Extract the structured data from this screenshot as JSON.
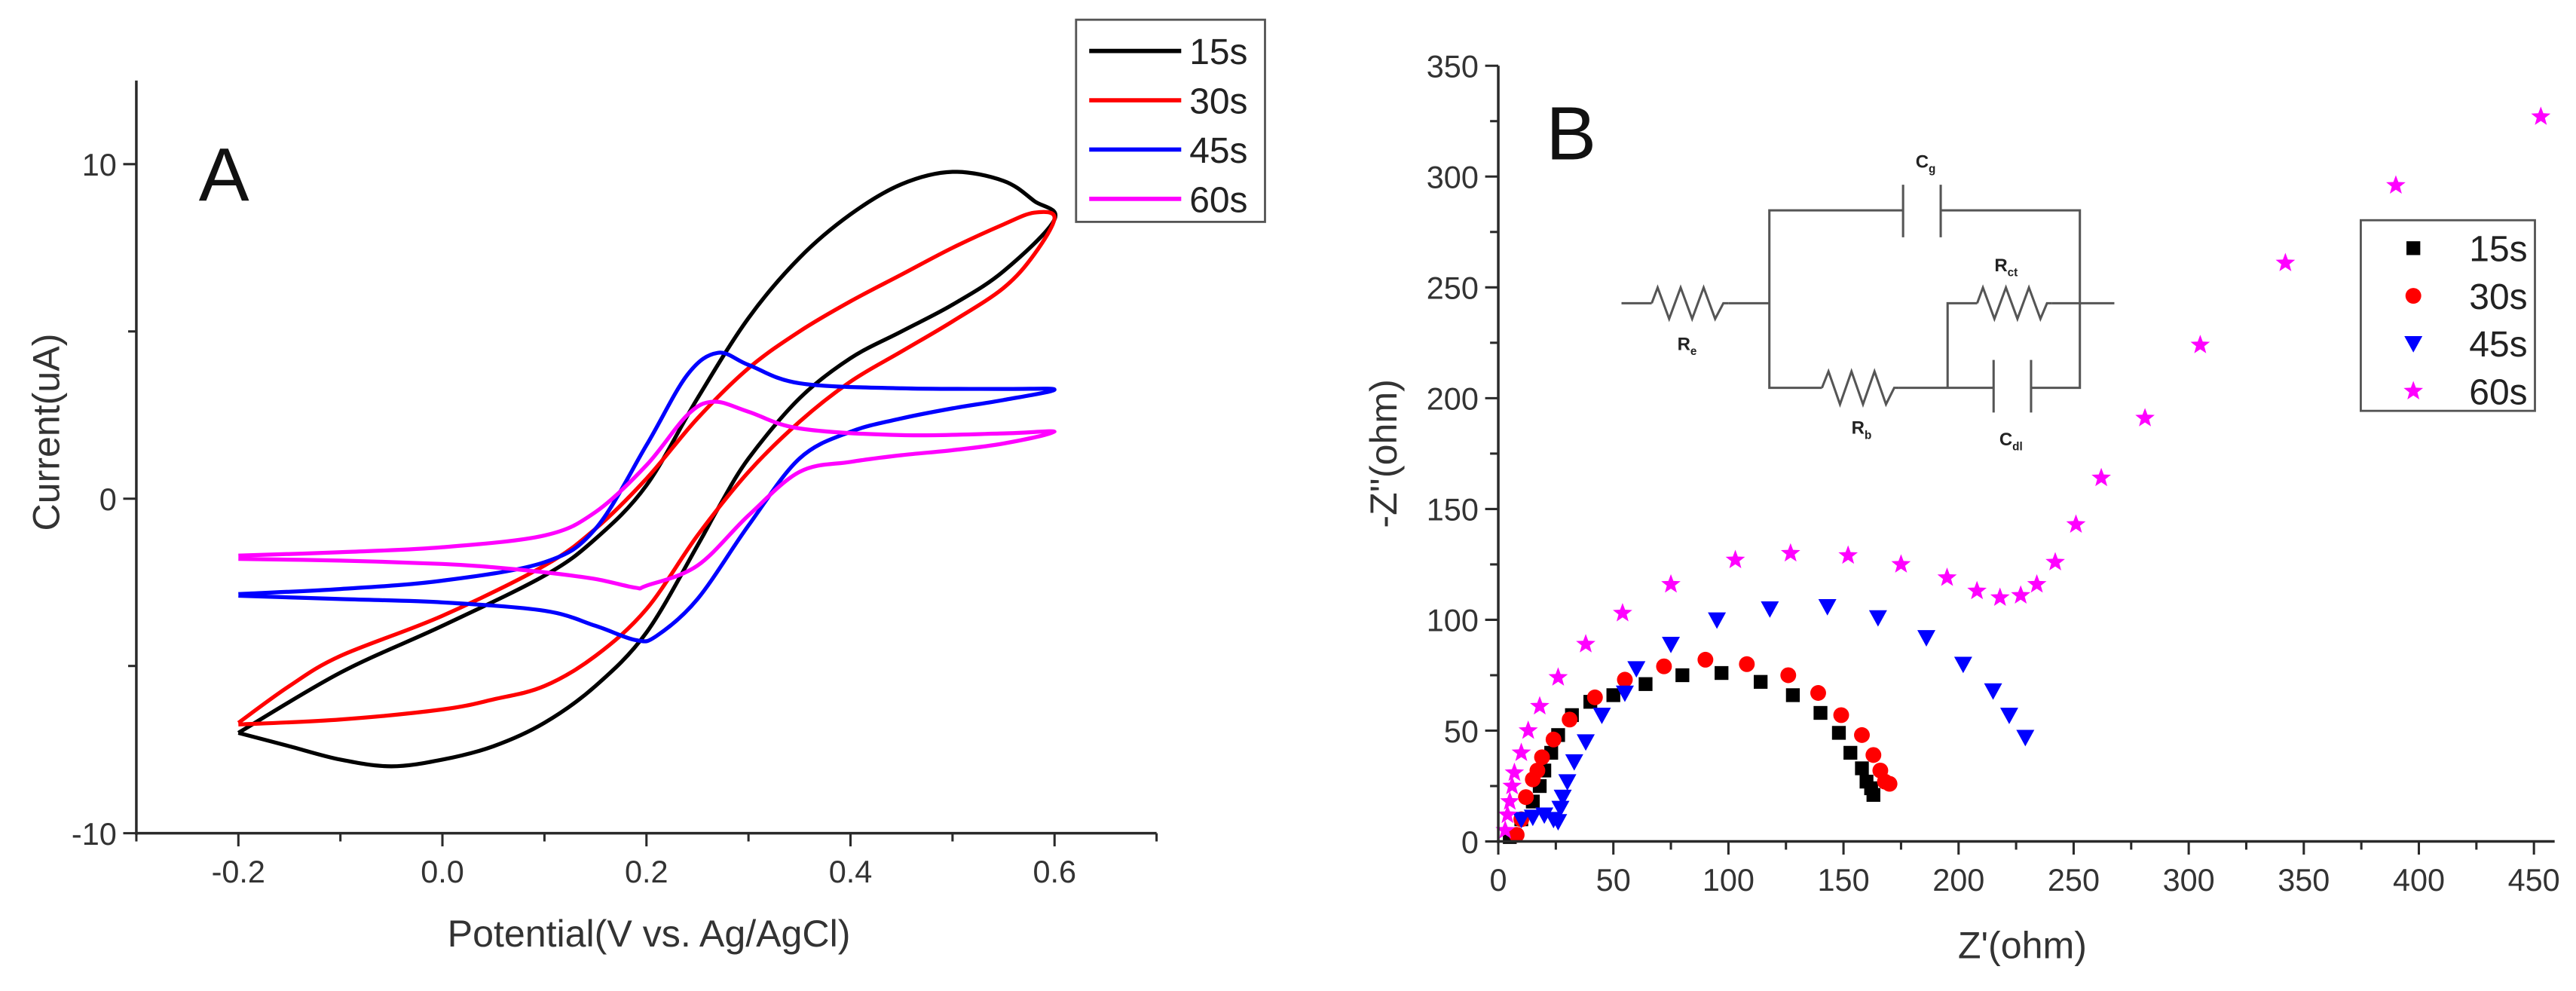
{
  "chart_data": [
    {
      "type": "line",
      "panel_label": "A",
      "title": "",
      "xlabel": "Potential(V vs. Ag/AgCl)",
      "ylabel": "Current(uA)",
      "xlim": [
        -0.3,
        0.7
      ],
      "ylim": [
        -10,
        12.5
      ],
      "xticks": [
        {
          "value": -0.2,
          "label": "-0.2"
        },
        {
          "value": 0.0,
          "label": "0.0"
        },
        {
          "value": 0.2,
          "label": "0.2"
        },
        {
          "value": 0.4,
          "label": "0.4"
        },
        {
          "value": 0.6,
          "label": "0.6"
        }
      ],
      "xminor_step": 0.1,
      "yticks": [
        {
          "value": -10,
          "label": "-10"
        },
        {
          "value": 0,
          "label": "0"
        },
        {
          "value": 10,
          "label": "10"
        }
      ],
      "yminor_step": 5,
      "grid": false,
      "legend_position": "top-right",
      "series": [
        {
          "name": "15s",
          "color": "#000000",
          "points": [
            [
              -0.2,
              -7.0
            ],
            [
              -0.1,
              -5.2
            ],
            [
              0.0,
              -3.8
            ],
            [
              0.1,
              -2.3
            ],
            [
              0.15,
              -1.2
            ],
            [
              0.2,
              0.4
            ],
            [
              0.25,
              3.0
            ],
            [
              0.3,
              5.4
            ],
            [
              0.35,
              7.2
            ],
            [
              0.4,
              8.5
            ],
            [
              0.45,
              9.4
            ],
            [
              0.5,
              9.77
            ],
            [
              0.55,
              9.5
            ],
            [
              0.58,
              8.9
            ],
            [
              0.6,
              8.35
            ],
            [
              0.55,
              6.8
            ],
            [
              0.5,
              5.8
            ],
            [
              0.45,
              5.0
            ],
            [
              0.4,
              4.2
            ],
            [
              0.35,
              3.0
            ],
            [
              0.3,
              1.2
            ],
            [
              0.27,
              -0.3
            ],
            [
              0.25,
              -1.4
            ],
            [
              0.2,
              -4.0
            ],
            [
              0.15,
              -5.6
            ],
            [
              0.1,
              -6.7
            ],
            [
              0.05,
              -7.4
            ],
            [
              0.0,
              -7.8
            ],
            [
              -0.05,
              -8.0
            ],
            [
              -0.1,
              -7.8
            ],
            [
              -0.15,
              -7.4
            ],
            [
              -0.2,
              -7.0
            ]
          ]
        },
        {
          "name": "30s",
          "color": "#ff0000",
          "points": [
            [
              -0.2,
              -6.7
            ],
            [
              -0.15,
              -5.6
            ],
            [
              -0.1,
              -4.7
            ],
            [
              0.0,
              -3.5
            ],
            [
              0.1,
              -2.0
            ],
            [
              0.15,
              -0.9
            ],
            [
              0.2,
              0.6
            ],
            [
              0.25,
              2.4
            ],
            [
              0.3,
              3.9
            ],
            [
              0.35,
              5.0
            ],
            [
              0.4,
              5.9
            ],
            [
              0.45,
              6.7
            ],
            [
              0.5,
              7.5
            ],
            [
              0.55,
              8.2
            ],
            [
              0.58,
              8.55
            ],
            [
              0.6,
              8.4
            ],
            [
              0.58,
              7.3
            ],
            [
              0.55,
              6.3
            ],
            [
              0.5,
              5.3
            ],
            [
              0.45,
              4.4
            ],
            [
              0.4,
              3.5
            ],
            [
              0.35,
              2.3
            ],
            [
              0.3,
              0.8
            ],
            [
              0.25,
              -1.1
            ],
            [
              0.2,
              -3.3
            ],
            [
              0.15,
              -4.7
            ],
            [
              0.1,
              -5.6
            ],
            [
              0.05,
              -6.0
            ],
            [
              0.0,
              -6.3
            ],
            [
              -0.1,
              -6.6
            ],
            [
              -0.2,
              -6.75
            ]
          ]
        },
        {
          "name": "45s",
          "color": "#0000ff",
          "points": [
            [
              -0.2,
              -2.85
            ],
            [
              -0.1,
              -2.7
            ],
            [
              0.0,
              -2.45
            ],
            [
              0.1,
              -1.9
            ],
            [
              0.15,
              -0.9
            ],
            [
              0.2,
              1.6
            ],
            [
              0.24,
              3.7
            ],
            [
              0.27,
              4.36
            ],
            [
              0.3,
              4.0
            ],
            [
              0.35,
              3.45
            ],
            [
              0.45,
              3.3
            ],
            [
              0.55,
              3.28
            ],
            [
              0.6,
              3.26
            ],
            [
              0.55,
              2.95
            ],
            [
              0.5,
              2.7
            ],
            [
              0.45,
              2.4
            ],
            [
              0.4,
              2.0
            ],
            [
              0.35,
              1.2
            ],
            [
              0.3,
              -0.8
            ],
            [
              0.25,
              -3.0
            ],
            [
              0.21,
              -4.1
            ],
            [
              0.19,
              -4.23
            ],
            [
              0.15,
              -3.8
            ],
            [
              0.1,
              -3.35
            ],
            [
              0.0,
              -3.1
            ],
            [
              -0.1,
              -3.0
            ],
            [
              -0.2,
              -2.9
            ]
          ]
        },
        {
          "name": "60s",
          "color": "#ff00ff",
          "points": [
            [
              -0.2,
              -1.7
            ],
            [
              -0.1,
              -1.6
            ],
            [
              0.0,
              -1.45
            ],
            [
              0.1,
              -1.1
            ],
            [
              0.15,
              -0.4
            ],
            [
              0.2,
              1.0
            ],
            [
              0.24,
              2.5
            ],
            [
              0.266,
              2.9
            ],
            [
              0.3,
              2.6
            ],
            [
              0.35,
              2.1
            ],
            [
              0.45,
              1.9
            ],
            [
              0.55,
              1.95
            ],
            [
              0.6,
              2.0
            ],
            [
              0.55,
              1.65
            ],
            [
              0.5,
              1.45
            ],
            [
              0.45,
              1.3
            ],
            [
              0.4,
              1.1
            ],
            [
              0.35,
              0.8
            ],
            [
              0.3,
              -0.5
            ],
            [
              0.25,
              -2.0
            ],
            [
              0.2,
              -2.6
            ],
            [
              0.189,
              -2.66
            ],
            [
              0.15,
              -2.4
            ],
            [
              0.1,
              -2.2
            ],
            [
              0.05,
              -2.05
            ],
            [
              0.0,
              -1.95
            ],
            [
              -0.1,
              -1.85
            ],
            [
              -0.2,
              -1.8
            ]
          ]
        }
      ]
    },
    {
      "type": "scatter",
      "panel_label": "B",
      "title": "",
      "xlabel": "Z'(ohm)",
      "ylabel": "-Z''(ohm)",
      "xlim": [
        0,
        459
      ],
      "ylim": [
        0,
        350
      ],
      "xticks": [
        {
          "value": 0,
          "label": "0"
        },
        {
          "value": 50,
          "label": "50"
        },
        {
          "value": 100,
          "label": "100"
        },
        {
          "value": 150,
          "label": "150"
        },
        {
          "value": 200,
          "label": "200"
        },
        {
          "value": 250,
          "label": "250"
        },
        {
          "value": 300,
          "label": "300"
        },
        {
          "value": 350,
          "label": "350"
        },
        {
          "value": 400,
          "label": "400"
        },
        {
          "value": 450,
          "label": "450"
        }
      ],
      "xminor_step": 25,
      "yticks": [
        {
          "value": 0,
          "label": "0"
        },
        {
          "value": 50,
          "label": "50"
        },
        {
          "value": 100,
          "label": "100"
        },
        {
          "value": 150,
          "label": "150"
        },
        {
          "value": 200,
          "label": "200"
        },
        {
          "value": 250,
          "label": "250"
        },
        {
          "value": 300,
          "label": "300"
        },
        {
          "value": 350,
          "label": "350"
        }
      ],
      "yminor_step": 25,
      "grid": false,
      "legend_position": "right",
      "series": [
        {
          "name": "15s",
          "color": "#000000",
          "marker": "square",
          "points": [
            [
              5,
              2
            ],
            [
              10,
              10
            ],
            [
              15,
              18
            ],
            [
              18,
              25
            ],
            [
              20,
              32
            ],
            [
              23,
              40
            ],
            [
              26,
              48
            ],
            [
              32,
              57
            ],
            [
              40,
              63
            ],
            [
              50,
              66
            ],
            [
              64,
              71
            ],
            [
              80,
              75
            ],
            [
              97,
              76
            ],
            [
              114,
              72
            ],
            [
              128,
              66
            ],
            [
              140,
              58
            ],
            [
              148,
              49
            ],
            [
              153,
              40
            ],
            [
              158,
              33
            ],
            [
              160,
              27
            ],
            [
              162,
              24
            ],
            [
              163,
              21
            ]
          ]
        },
        {
          "name": "30s",
          "color": "#ff0000",
          "marker": "circle",
          "points": [
            [
              8,
              3
            ],
            [
              10,
              10
            ],
            [
              12,
              20
            ],
            [
              15,
              28
            ],
            [
              17,
              32
            ],
            [
              19,
              38
            ],
            [
              24,
              46
            ],
            [
              31,
              55
            ],
            [
              42,
              65
            ],
            [
              55,
              73
            ],
            [
              72,
              79
            ],
            [
              90,
              82
            ],
            [
              108,
              80
            ],
            [
              126,
              75
            ],
            [
              139,
              67
            ],
            [
              149,
              57
            ],
            [
              158,
              48
            ],
            [
              163,
              39
            ],
            [
              166,
              32
            ],
            [
              168,
              27
            ],
            [
              170,
              26
            ]
          ]
        },
        {
          "name": "45s",
          "color": "#0000ff",
          "marker": "triangle-down",
          "points": [
            [
              10,
              10
            ],
            [
              15,
              11
            ],
            [
              20,
              12
            ],
            [
              24,
              10
            ],
            [
              26,
              9
            ],
            [
              27,
              15
            ],
            [
              28,
              20
            ],
            [
              30,
              27
            ],
            [
              33,
              36
            ],
            [
              38,
              45
            ],
            [
              45,
              57
            ],
            [
              55,
              67
            ],
            [
              60,
              78
            ],
            [
              75,
              89
            ],
            [
              95,
              100
            ],
            [
              118,
              105
            ],
            [
              143,
              106
            ],
            [
              165,
              101
            ],
            [
              186,
              92
            ],
            [
              202,
              80
            ],
            [
              215,
              68
            ],
            [
              222,
              57
            ],
            [
              229,
              47
            ]
          ]
        },
        {
          "name": "60s",
          "color": "#ff00ff",
          "marker": "star",
          "points": [
            [
              3,
              5
            ],
            [
              4,
              12
            ],
            [
              5,
              18
            ],
            [
              6,
              25
            ],
            [
              7,
              31
            ],
            [
              10,
              40
            ],
            [
              13,
              50
            ],
            [
              18,
              61
            ],
            [
              26,
              74
            ],
            [
              38,
              89
            ],
            [
              54,
              103
            ],
            [
              75,
              116
            ],
            [
              103,
              127
            ],
            [
              127,
              130
            ],
            [
              152,
              129
            ],
            [
              175,
              125
            ],
            [
              195,
              119
            ],
            [
              208,
              113
            ],
            [
              218,
              110
            ],
            [
              227,
              111
            ],
            [
              234,
              116
            ],
            [
              242,
              126
            ],
            [
              251,
              143
            ],
            [
              262,
              164
            ],
            [
              281,
              191
            ],
            [
              305,
              224
            ],
            [
              342,
              261
            ],
            [
              390,
              296
            ],
            [
              453,
              327
            ]
          ]
        }
      ],
      "inset_circuit": {
        "labels": {
          "cg": {
            "main": "C",
            "sub": "g"
          },
          "rct": {
            "main": "R",
            "sub": "ct"
          },
          "re": {
            "main": "R",
            "sub": "e"
          },
          "rb": {
            "main": "R",
            "sub": "b"
          },
          "cdl": {
            "main": "C",
            "sub": "dl"
          }
        }
      }
    }
  ]
}
